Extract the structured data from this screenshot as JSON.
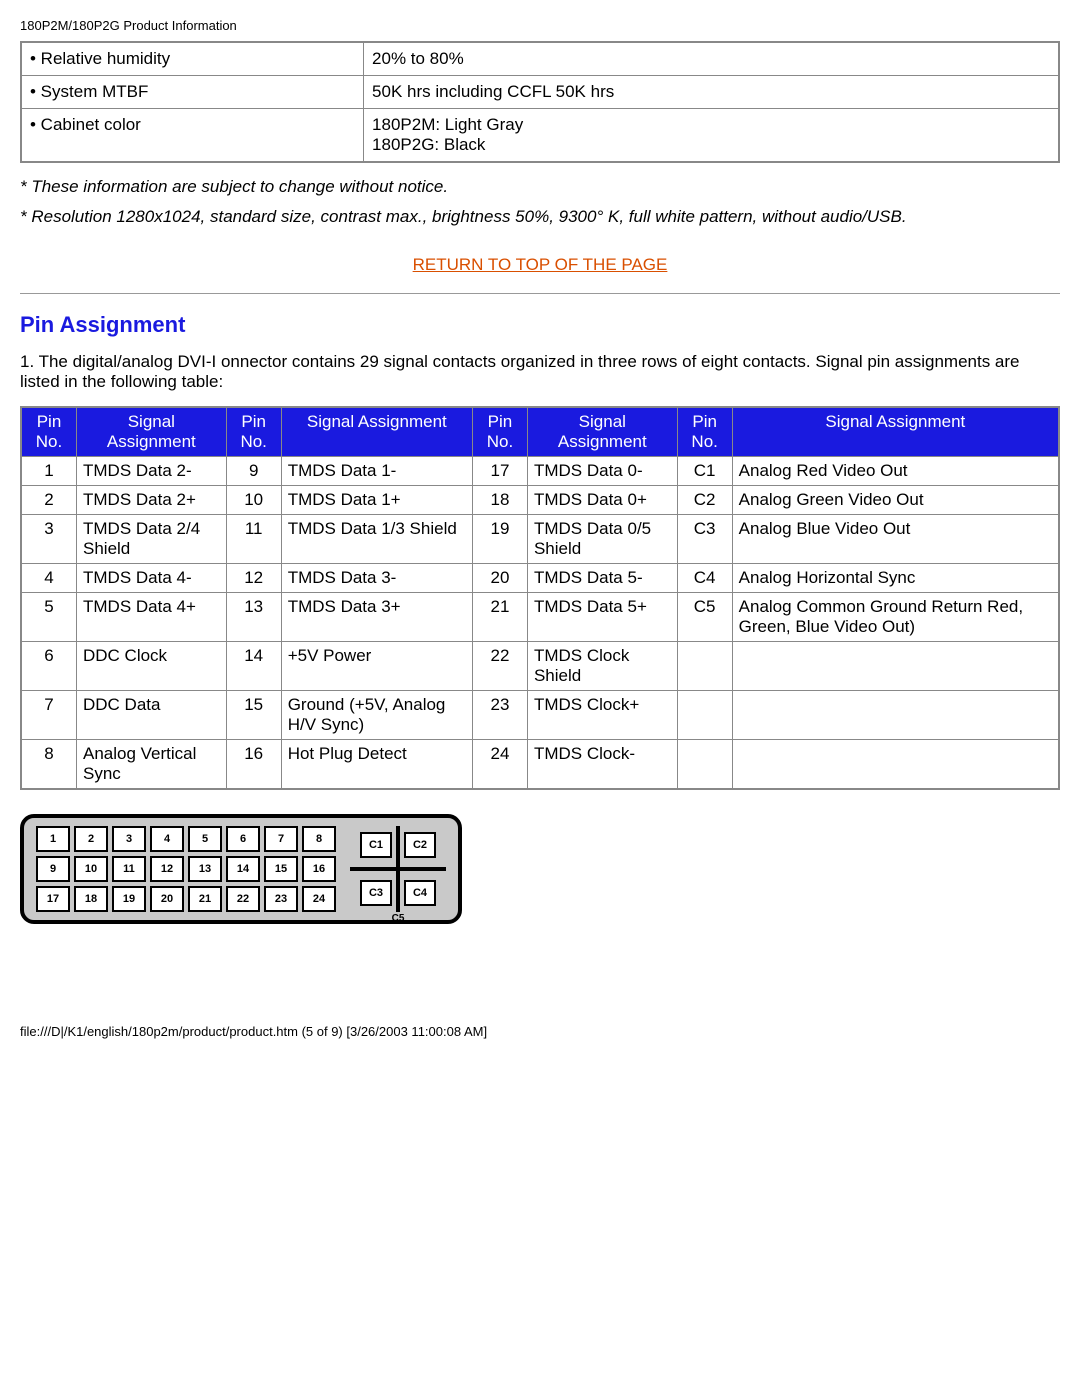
{
  "header": "180P2M/180P2G Product Information",
  "spec_table": {
    "rows": [
      {
        "label": "• Relative humidity",
        "value": "20% to 80%"
      },
      {
        "label": "• System MTBF",
        "value": "50K hrs including CCFL 50K hrs"
      },
      {
        "label": "• Cabinet color",
        "value": "180P2M: Light Gray\n180P2G: Black"
      }
    ]
  },
  "note1": "* These information are subject to change without notice.",
  "note2": "* Resolution 1280x1024, standard size, contrast max., brightness 50%, 9300° K, full white pattern, without audio/USB.",
  "return_link": "RETURN TO TOP OF THE PAGE",
  "section_title": "Pin Assignment",
  "section_desc": "1. The digital/analog DVI-I onnector contains 29 signal contacts organized in three rows of eight contacts. Signal pin assignments are listed in the following table:",
  "pin_table": {
    "headers": {
      "pin": "Pin No.",
      "sig": "Signal Assignment"
    },
    "col1": [
      {
        "n": "1",
        "s": "TMDS Data 2-"
      },
      {
        "n": "2",
        "s": "TMDS Data 2+"
      },
      {
        "n": "3",
        "s": "TMDS Data 2/4 Shield"
      },
      {
        "n": "4",
        "s": "TMDS Data 4-"
      },
      {
        "n": "5",
        "s": "TMDS Data 4+"
      },
      {
        "n": "6",
        "s": "DDC Clock"
      },
      {
        "n": "7",
        "s": "DDC Data"
      },
      {
        "n": "8",
        "s": "Analog Vertical Sync"
      }
    ],
    "col2": [
      {
        "n": "9",
        "s": "TMDS Data 1-"
      },
      {
        "n": "10",
        "s": "TMDS Data 1+"
      },
      {
        "n": "11",
        "s": "TMDS Data 1/3 Shield"
      },
      {
        "n": "12",
        "s": "TMDS Data 3-"
      },
      {
        "n": "13",
        "s": "TMDS Data 3+"
      },
      {
        "n": "14",
        "s": "+5V Power"
      },
      {
        "n": "15",
        "s": "Ground (+5V, Analog H/V Sync)"
      },
      {
        "n": "16",
        "s": "Hot Plug Detect"
      }
    ],
    "col3": [
      {
        "n": "17",
        "s": "TMDS Data 0-"
      },
      {
        "n": "18",
        "s": "TMDS Data 0+"
      },
      {
        "n": "19",
        "s": "TMDS Data 0/5 Shield"
      },
      {
        "n": "20",
        "s": "TMDS Data 5-"
      },
      {
        "n": "21",
        "s": "TMDS Data 5+"
      },
      {
        "n": "22",
        "s": "TMDS Clock Shield"
      },
      {
        "n": "23",
        "s": "TMDS Clock+"
      },
      {
        "n": "24",
        "s": "TMDS Clock-"
      }
    ],
    "col4": [
      {
        "n": "C1",
        "s": "Analog Red Video Out"
      },
      {
        "n": "C2",
        "s": "Analog Green Video Out"
      },
      {
        "n": "C3",
        "s": "Analog Blue Video Out"
      },
      {
        "n": "C4",
        "s": "Analog Horizontal Sync"
      },
      {
        "n": "C5",
        "s": "Analog Common Ground Return Red, Green, Blue Video Out)"
      },
      {
        "n": "",
        "s": ""
      },
      {
        "n": "",
        "s": ""
      },
      {
        "n": "",
        "s": ""
      }
    ]
  },
  "connector": {
    "grid": [
      "1",
      "2",
      "3",
      "4",
      "5",
      "6",
      "7",
      "8",
      "9",
      "10",
      "11",
      "12",
      "13",
      "14",
      "15",
      "16",
      "17",
      "18",
      "19",
      "20",
      "21",
      "22",
      "23",
      "24"
    ],
    "c": {
      "c1": "C1",
      "c2": "C2",
      "c3": "C3",
      "c4": "C4",
      "c5": "C5"
    }
  },
  "footer": "file:///D|/K1/english/180p2m/product/product.htm (5 of 9) [3/26/2003 11:00:08 AM]",
  "colors": {
    "header_bg": "#1a1adf",
    "header_fg": "#ffffff",
    "link": "#d94f00",
    "title": "#1a1adf",
    "border": "#888888"
  }
}
